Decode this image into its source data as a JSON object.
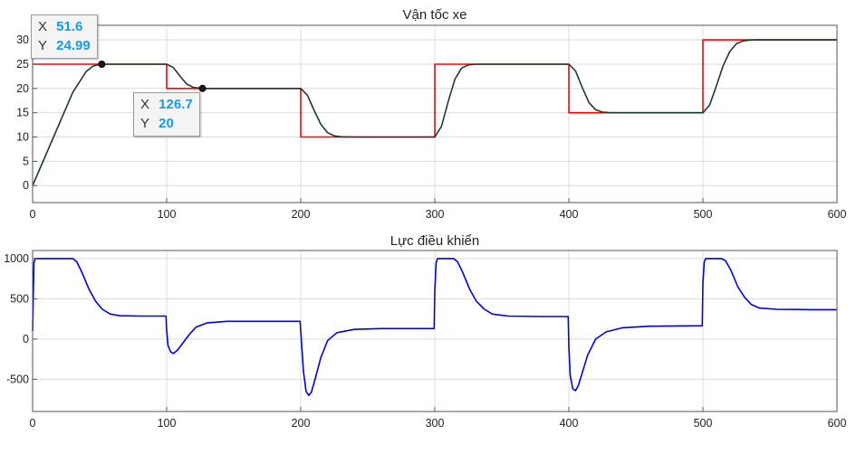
{
  "chart_data": [
    {
      "type": "line",
      "title": "Vận tốc xe",
      "xlim": [
        0,
        600
      ],
      "ylim": [
        -3.5,
        33
      ],
      "x_ticks": [
        0,
        100,
        200,
        300,
        400,
        500,
        600
      ],
      "y_ticks": [
        0,
        5,
        10,
        15,
        20,
        25,
        30
      ],
      "grid": true,
      "series": [
        {
          "color": "#ff0000",
          "kind": "step",
          "x": [
            0,
            100,
            100,
            200,
            200,
            300,
            300,
            400,
            400,
            500,
            500,
            600
          ],
          "y": [
            25,
            25,
            20,
            20,
            10,
            10,
            25,
            25,
            15,
            15,
            30,
            30
          ]
        },
        {
          "color": "#1e3b2a",
          "x": [
            0,
            5,
            10,
            20,
            30,
            40,
            45,
            50,
            51.6,
            55,
            60,
            100,
            105,
            110,
            115,
            120,
            126.7,
            130,
            200,
            205,
            210,
            215,
            220,
            225,
            230,
            240,
            300,
            305,
            310,
            315,
            320,
            325,
            330,
            340,
            400,
            405,
            410,
            415,
            420,
            425,
            430,
            440,
            500,
            505,
            510,
            515,
            520,
            525,
            530,
            535,
            540,
            600
          ],
          "y": [
            0,
            3.2,
            6.4,
            12.8,
            19.2,
            23.5,
            24.6,
            24.95,
            24.99,
            25,
            25,
            25,
            24.3,
            22.5,
            20.9,
            20.2,
            20,
            20,
            20,
            18.6,
            15.5,
            12.6,
            10.9,
            10.25,
            10.05,
            10,
            10,
            12.2,
            17.3,
            21.9,
            24.2,
            24.85,
            25,
            25,
            25,
            23.6,
            20.2,
            17.1,
            15.6,
            15.15,
            15.03,
            15,
            15,
            16.6,
            20.5,
            24.6,
            27.6,
            29.2,
            29.8,
            29.97,
            30,
            30
          ]
        }
      ],
      "datatips": [
        {
          "x_label": "X",
          "x_value": "51.6",
          "y_label": "Y",
          "y_value": "24.99",
          "x": 51.6,
          "y": 24.99
        },
        {
          "x_label": "X",
          "x_value": "126.7",
          "y_label": "Y",
          "y_value": "20",
          "x": 126.7,
          "y": 20
        }
      ]
    },
    {
      "type": "line",
      "title": "Lực điều khiển",
      "xlim": [
        0,
        600
      ],
      "ylim": [
        -900,
        1100
      ],
      "x_ticks": [
        0,
        100,
        200,
        300,
        400,
        500,
        600
      ],
      "y_ticks": [
        -500,
        0,
        500,
        1000
      ],
      "grid": true,
      "series": [
        {
          "color": "#0000dd",
          "x": [
            0,
            1,
            2,
            30,
            33,
            37,
            42,
            47,
            52,
            58,
            65,
            80,
            99.5,
            100,
            101,
            103,
            105,
            108,
            112,
            117,
            122,
            130,
            145,
            199.5,
            200,
            202,
            204,
            206,
            208,
            211,
            215,
            220,
            227,
            240,
            260,
            299.5,
            300,
            301,
            302,
            314,
            317,
            321,
            326,
            331,
            337,
            343,
            355,
            380,
            399.5,
            400,
            401,
            403,
            405,
            407,
            410,
            414,
            420,
            428,
            440,
            460,
            499.5,
            500,
            501,
            502,
            514,
            517,
            521,
            526,
            531,
            536,
            542,
            555,
            580,
            600
          ],
          "y": [
            100,
            950,
            1000,
            1000,
            960,
            820,
            620,
            470,
            370,
            310,
            290,
            285,
            285,
            100,
            -80,
            -160,
            -180,
            -140,
            -50,
            60,
            150,
            200,
            220,
            220,
            100,
            -400,
            -650,
            -700,
            -660,
            -480,
            -230,
            -20,
            80,
            120,
            130,
            130,
            600,
            950,
            1000,
            1000,
            960,
            820,
            620,
            470,
            370,
            310,
            285,
            280,
            280,
            -100,
            -450,
            -620,
            -640,
            -580,
            -420,
            -200,
            0,
            90,
            140,
            160,
            165,
            700,
            960,
            1000,
            1000,
            970,
            850,
            650,
            520,
            430,
            385,
            370,
            365,
            365
          ]
        }
      ]
    }
  ]
}
